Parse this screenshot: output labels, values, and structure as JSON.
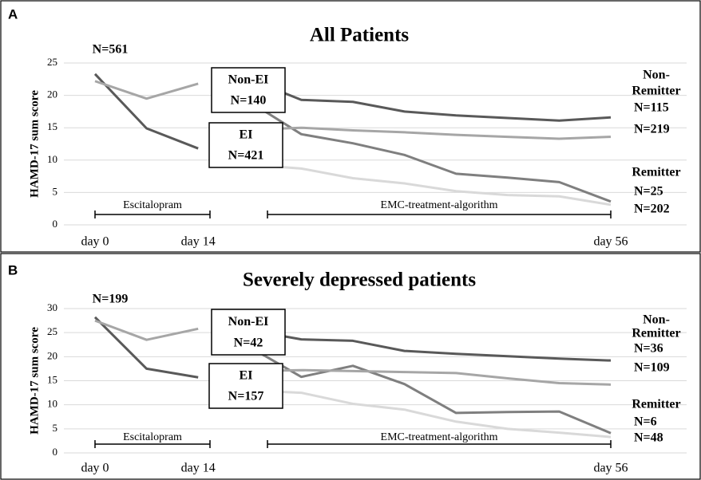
{
  "chart_data": [
    {
      "type": "line",
      "panel": "A",
      "title": "All Patients",
      "ylabel": "HAMD-17 sum score",
      "categories": [
        "day 0",
        null,
        "day 14",
        null,
        null,
        null,
        null,
        null,
        null,
        null,
        "day 56"
      ],
      "ylim": [
        0,
        25
      ],
      "yticks": [
        0,
        5,
        10,
        15,
        20,
        25
      ],
      "grid": true,
      "series": [
        {
          "color": "#595959",
          "values": [
            23.3,
            14.9,
            11.8,
            null,
            null,
            null,
            null,
            null,
            null,
            null,
            null
          ]
        },
        {
          "color": "#a6a6a6",
          "values": [
            22.2,
            19.5,
            21.8,
            null,
            null,
            null,
            null,
            null,
            null,
            null,
            null
          ]
        },
        {
          "color": "#595959",
          "values": [
            null,
            null,
            null,
            22.5,
            19.3,
            19.0,
            17.5,
            16.9,
            16.5,
            16.1,
            16.6
          ]
        },
        {
          "color": "#7f7f7f",
          "values": [
            null,
            null,
            null,
            19.0,
            14.0,
            12.6,
            10.8,
            7.9,
            7.3,
            6.6,
            3.6
          ]
        },
        {
          "color": "#a6a6a6",
          "values": [
            null,
            null,
            null,
            14.7,
            15.0,
            14.6,
            14.3,
            13.9,
            13.6,
            13.3,
            13.6
          ]
        },
        {
          "color": "#d9d9d9",
          "values": [
            null,
            null,
            null,
            9.3,
            8.7,
            7.2,
            6.4,
            5.2,
            4.6,
            4.4,
            3.1
          ]
        }
      ],
      "labels": [
        "N=561",
        "Non-EI",
        "N=140",
        "EI",
        "N=421",
        "Non-",
        "Remitter",
        "N=115",
        "N=219",
        "Remitter",
        "N=25",
        "N=202",
        "Escitalopram",
        "EMC-treatment-algorithm"
      ]
    },
    {
      "type": "line",
      "panel": "B",
      "title": "Severely depressed patients",
      "ylabel": "HAMD-17 sum score",
      "categories": [
        "day 0",
        null,
        "day 14",
        null,
        null,
        null,
        null,
        null,
        null,
        null,
        "day 56"
      ],
      "ylim": [
        0,
        30
      ],
      "yticks": [
        0,
        5,
        10,
        15,
        20,
        25,
        30
      ],
      "grid": true,
      "series": [
        {
          "color": "#595959",
          "values": [
            28.2,
            17.5,
            15.7,
            null,
            null,
            null,
            null,
            null,
            null,
            null,
            null
          ]
        },
        {
          "color": "#a6a6a6",
          "values": [
            27.5,
            23.5,
            25.8,
            null,
            null,
            null,
            null,
            null,
            null,
            null,
            null
          ]
        },
        {
          "color": "#595959",
          "values": [
            null,
            null,
            null,
            25.5,
            23.6,
            23.3,
            21.2,
            20.6,
            20.1,
            19.6,
            19.2
          ]
        },
        {
          "color": "#7f7f7f",
          "values": [
            null,
            null,
            null,
            22.0,
            15.8,
            18.1,
            14.3,
            8.3,
            8.5,
            8.6,
            4.1
          ]
        },
        {
          "color": "#a6a6a6",
          "values": [
            null,
            null,
            null,
            17.0,
            17.2,
            17.0,
            16.8,
            16.6,
            15.5,
            14.5,
            14.2
          ]
        },
        {
          "color": "#d9d9d9",
          "values": [
            null,
            null,
            null,
            13.0,
            12.5,
            10.2,
            9.0,
            6.5,
            5.0,
            4.2,
            3.3
          ]
        }
      ],
      "labels": [
        "N=199",
        "Non-EI",
        "N=42",
        "EI",
        "N=157",
        "Non-",
        "Remitter",
        "N=36",
        "N=109",
        "Remitter",
        "N=6",
        "N=48",
        "Escitalopram",
        "EMC-treatment-algorithm"
      ]
    }
  ]
}
